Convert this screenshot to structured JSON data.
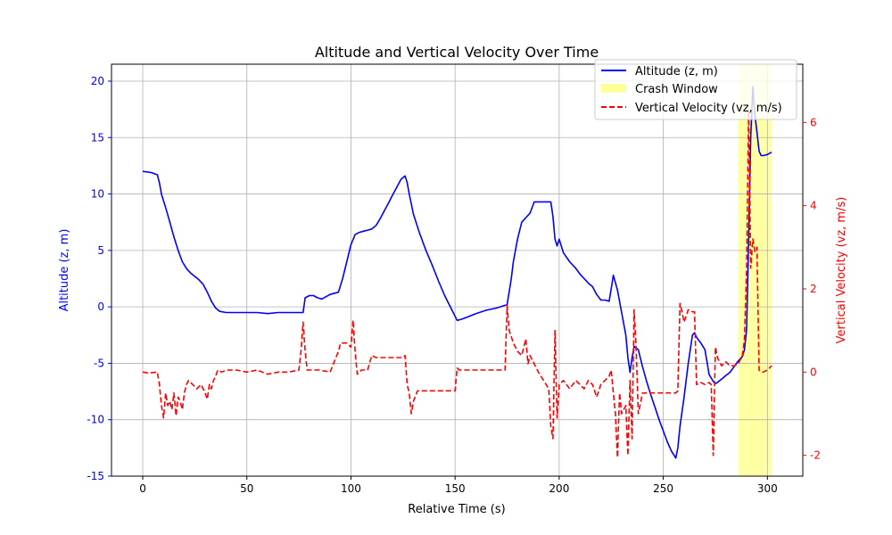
{
  "chart_data": {
    "type": "line",
    "title": "Altitude and Vertical Velocity Over Time",
    "xlabel": "Relative Time (s)",
    "ylabel_left": "Altitude (z, m)",
    "ylabel_right": "Vertical Velocity (vz, m/s)",
    "xlim": [
      -15,
      317
    ],
    "ylim_left": [
      -15,
      21.5
    ],
    "ylim_right": [
      -2.5,
      7.4
    ],
    "x_ticks": [
      0,
      50,
      100,
      150,
      200,
      250,
      300
    ],
    "y_ticks_left": [
      -15,
      -10,
      -5,
      0,
      5,
      10,
      15,
      20
    ],
    "y_ticks_right": [
      -2,
      0,
      2,
      4,
      6
    ],
    "grid": true,
    "legend_location": "top-right",
    "colors": {
      "altitude": "#0000ff",
      "velocity": "#ff0000",
      "crash": "#ffff99",
      "grid": "#b0b0b0"
    },
    "crash_window": {
      "label": "Crash Window",
      "x_start": 286,
      "x_end": 302
    },
    "series": [
      {
        "name": "Altitude (z, m)",
        "axis": "left",
        "style": "solid",
        "x": [
          0,
          4,
          7,
          8,
          9,
          11,
          13,
          15,
          17,
          19,
          21,
          23,
          25,
          27,
          29,
          31,
          33,
          35,
          37,
          40,
          45,
          50,
          55,
          60,
          65,
          70,
          75,
          77,
          78,
          80,
          82,
          84,
          86,
          90,
          94,
          96,
          98,
          100,
          102,
          104,
          106,
          108,
          110,
          112,
          114,
          116,
          118,
          120,
          122,
          124,
          126,
          127,
          128,
          130,
          133,
          136,
          139,
          142,
          145,
          148,
          151,
          153,
          156,
          160,
          165,
          170,
          175,
          177,
          178,
          180,
          182,
          184,
          186,
          188,
          190,
          193,
          196,
          197,
          198,
          199,
          200,
          202,
          205,
          208,
          210,
          212,
          214,
          216,
          218,
          220,
          222,
          224,
          225,
          226,
          228,
          230,
          232,
          233,
          234,
          235,
          236,
          238,
          240,
          242,
          244,
          246,
          248,
          250,
          252,
          254,
          256,
          257,
          258,
          260,
          262,
          264,
          265,
          266,
          268,
          270,
          272,
          274,
          275,
          276,
          278,
          280,
          282,
          284,
          286,
          288,
          289,
          290,
          291,
          292,
          293,
          294,
          295,
          296,
          297,
          298,
          300,
          302
        ],
        "y": [
          12,
          11.9,
          11.7,
          11,
          10,
          8.8,
          7.5,
          6.2,
          5,
          4,
          3.4,
          3,
          2.7,
          2.4,
          2,
          1.3,
          0.5,
          -0.1,
          -0.4,
          -0.5,
          -0.5,
          -0.5,
          -0.5,
          -0.6,
          -0.5,
          -0.5,
          -0.5,
          -0.5,
          0.8,
          1,
          1,
          0.8,
          0.7,
          1.1,
          1.3,
          2.5,
          4,
          5.5,
          6.4,
          6.6,
          6.7,
          6.8,
          6.9,
          7.2,
          7.8,
          8.5,
          9.2,
          9.9,
          10.6,
          11.3,
          11.6,
          11,
          10,
          8.2,
          6.5,
          5,
          3.7,
          2.3,
          1,
          -0.1,
          -1.2,
          -1.1,
          -0.9,
          -0.6,
          -0.3,
          -0.1,
          0.2,
          2.5,
          4,
          6,
          7.5,
          7.9,
          8.3,
          9.3,
          9.3,
          9.3,
          9.3,
          8,
          6,
          5.4,
          6,
          4.8,
          4,
          3.4,
          2.9,
          2.5,
          2.1,
          1.8,
          1.1,
          0.6,
          0.6,
          0.5,
          1.6,
          2.8,
          1.5,
          -0.5,
          -2.5,
          -4.5,
          -5.8,
          -4.5,
          -3.5,
          -3.8,
          -5.3,
          -6.6,
          -7.8,
          -8.9,
          -10,
          -11,
          -12,
          -12.8,
          -13.4,
          -12.5,
          -10.6,
          -8,
          -5,
          -2.5,
          -2.3,
          -2.7,
          -3.2,
          -3.8,
          -6,
          -6.6,
          -6.8,
          -6.7,
          -6.4,
          -6.1,
          -5.8,
          -5.3,
          -4.8,
          -4.4,
          -3.8,
          -2,
          6,
          15,
          19.5,
          17,
          15.5,
          13.8,
          13.4,
          13.4,
          13.5,
          13.7
        ]
      },
      {
        "name": "Vertical Velocity (vz, m/s)",
        "axis": "right",
        "style": "dashed",
        "x": [
          0,
          3,
          7,
          8,
          9,
          10,
          11,
          12,
          13,
          14,
          15,
          16,
          17,
          18,
          19,
          20,
          21,
          22,
          24,
          26,
          28,
          30,
          31,
          32,
          33,
          34,
          35,
          36,
          38,
          40,
          45,
          50,
          55,
          60,
          65,
          70,
          75,
          76,
          77,
          78,
          79,
          80,
          85,
          90,
          94,
          95,
          98,
          100,
          101,
          102,
          103,
          105,
          108,
          110,
          112,
          115,
          120,
          125,
          126,
          127,
          128,
          129,
          130,
          132,
          135,
          140,
          145,
          150,
          151,
          152,
          155,
          160,
          165,
          170,
          174,
          175,
          176,
          178,
          180,
          182,
          184,
          185,
          186,
          188,
          190,
          195,
          196,
          197,
          198,
          199,
          200,
          202,
          205,
          208,
          210,
          212,
          214,
          216,
          218,
          220,
          222,
          224,
          225,
          226,
          227,
          228,
          229,
          230,
          232,
          233,
          234,
          235,
          236,
          237,
          238,
          240,
          245,
          250,
          255,
          256,
          257,
          258,
          259,
          260,
          262,
          264,
          265,
          266,
          268,
          270,
          272,
          273,
          274,
          275,
          276,
          278,
          280,
          282,
          284,
          286,
          288,
          289,
          290,
          291,
          292,
          293,
          294,
          295,
          296,
          297,
          298,
          300,
          302
        ],
        "y": [
          0,
          -0.02,
          0,
          -0.3,
          -0.8,
          -1.1,
          -0.5,
          -0.8,
          -0.7,
          -0.9,
          -0.5,
          -1.05,
          -0.6,
          -0.7,
          -0.9,
          -0.5,
          -0.3,
          -0.2,
          -0.3,
          -0.4,
          -0.3,
          -0.5,
          -0.65,
          -0.3,
          -0.4,
          -0.2,
          -0.1,
          0.05,
          0,
          0.05,
          0.05,
          0,
          0.05,
          -0.05,
          0,
          0,
          0.05,
          0.5,
          1.2,
          0.5,
          0.05,
          0.05,
          0.05,
          0,
          0.5,
          0.7,
          0.7,
          0.6,
          1.25,
          0.5,
          -0.05,
          0.05,
          0.05,
          0.4,
          0.35,
          0.35,
          0.35,
          0.35,
          0.4,
          -0.3,
          -0.5,
          -1,
          -0.7,
          -0.45,
          -0.45,
          -0.45,
          -0.45,
          -0.45,
          0.1,
          0.05,
          0.05,
          0.05,
          0.05,
          0.05,
          0.05,
          1.6,
          1,
          0.7,
          0.5,
          0.4,
          0.8,
          0.2,
          0.4,
          0.2,
          0,
          -0.4,
          -1.3,
          -1.6,
          1,
          -1.1,
          -0.3,
          -0.2,
          -0.4,
          -0.2,
          -0.3,
          -0.4,
          -0.2,
          -0.3,
          -0.6,
          -0.3,
          -0.2,
          -0.1,
          0.05,
          -0.5,
          -1,
          -2.05,
          -0.5,
          -1,
          -0.8,
          -2,
          -0.2,
          -1.6,
          1.5,
          0.5,
          -1,
          -0.5,
          -0.5,
          -0.5,
          -0.5,
          -0.5,
          -0.45,
          1.65,
          1.45,
          1.2,
          1.5,
          1.45,
          1.45,
          -0.3,
          -0.25,
          -0.3,
          -0.25,
          -0.3,
          -2,
          0.6,
          0.35,
          0.15,
          0.25,
          0.15,
          0.15,
          0.2,
          0.4,
          0.8,
          2.5,
          6.3,
          2.5,
          3.2,
          2.9,
          3,
          0.05,
          0,
          0,
          0.05,
          0.15
        ]
      }
    ]
  }
}
